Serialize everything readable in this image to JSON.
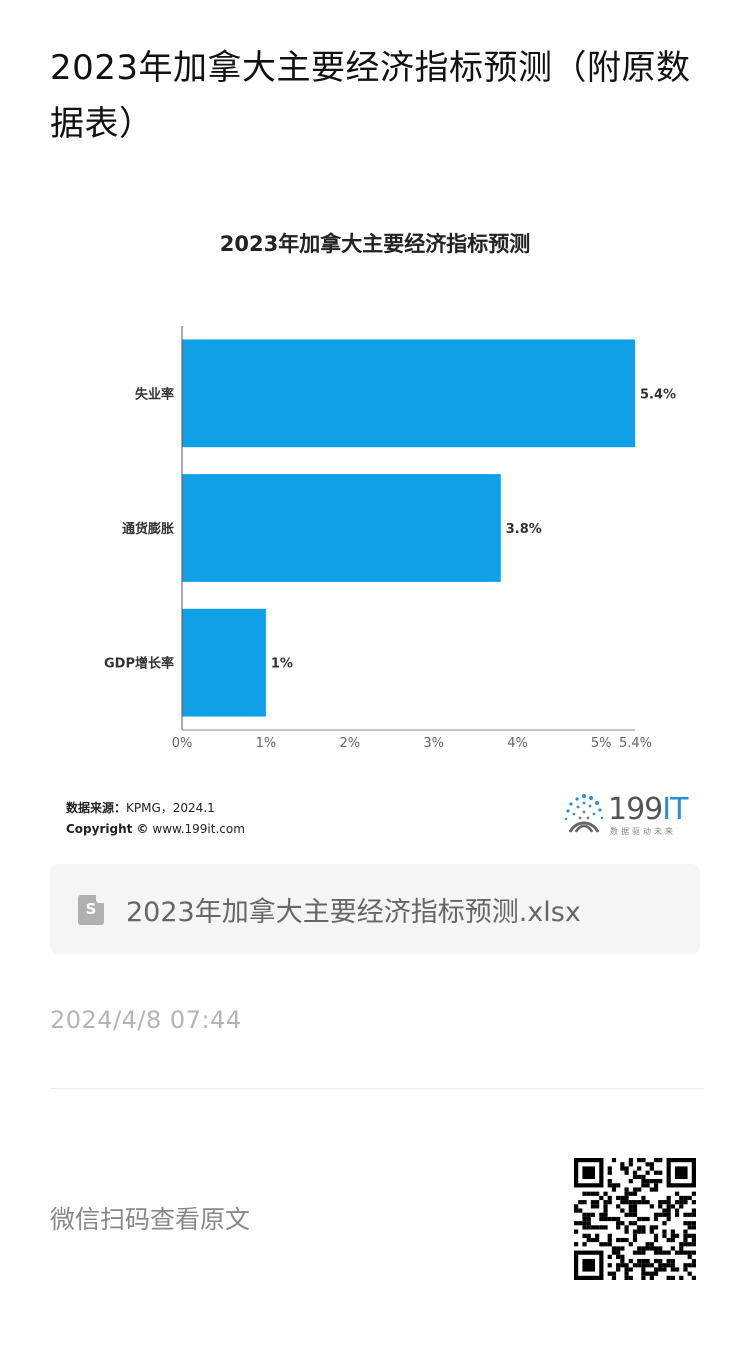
{
  "article": {
    "title": "2023年加拿大主要经济指标预测（附原数据表）",
    "date": "2024/4/8 07:44"
  },
  "attachment": {
    "file_name": "2023年加拿大主要经济指标预测.xlsx",
    "icon": "spreadsheet-file-icon",
    "icon_letter": "S"
  },
  "footer": {
    "wechat_prompt": "微信扫码查看原文",
    "qr_icon": "qr-code-icon"
  },
  "source": {
    "label": "数据来源：",
    "value": "KPMG，2024.1",
    "copyright_label": "Copyright ©",
    "copyright_value": "www.199it.com"
  },
  "logo": {
    "text": "199",
    "text_accent": "IT",
    "slogan": "数据驱动未来"
  },
  "colors": {
    "bar": "#0fa0e6",
    "axis": "#888888"
  },
  "chart_data": {
    "type": "bar",
    "orientation": "horizontal",
    "title": "2023年加拿大主要经济指标预测",
    "categories": [
      "失业率",
      "通货膨胀",
      "GDP增长率"
    ],
    "values": [
      5.4,
      3.8,
      1.0
    ],
    "data_labels": [
      "5.4%",
      "3.8%",
      "1%"
    ],
    "xlim": [
      0,
      5.4
    ],
    "xticks": [
      0,
      1,
      2,
      3,
      4,
      5,
      5.4
    ],
    "xtick_labels": [
      "0%",
      "1%",
      "2%",
      "3%",
      "4%",
      "5%",
      "5.4%"
    ],
    "grid": false,
    "legend": "none"
  }
}
